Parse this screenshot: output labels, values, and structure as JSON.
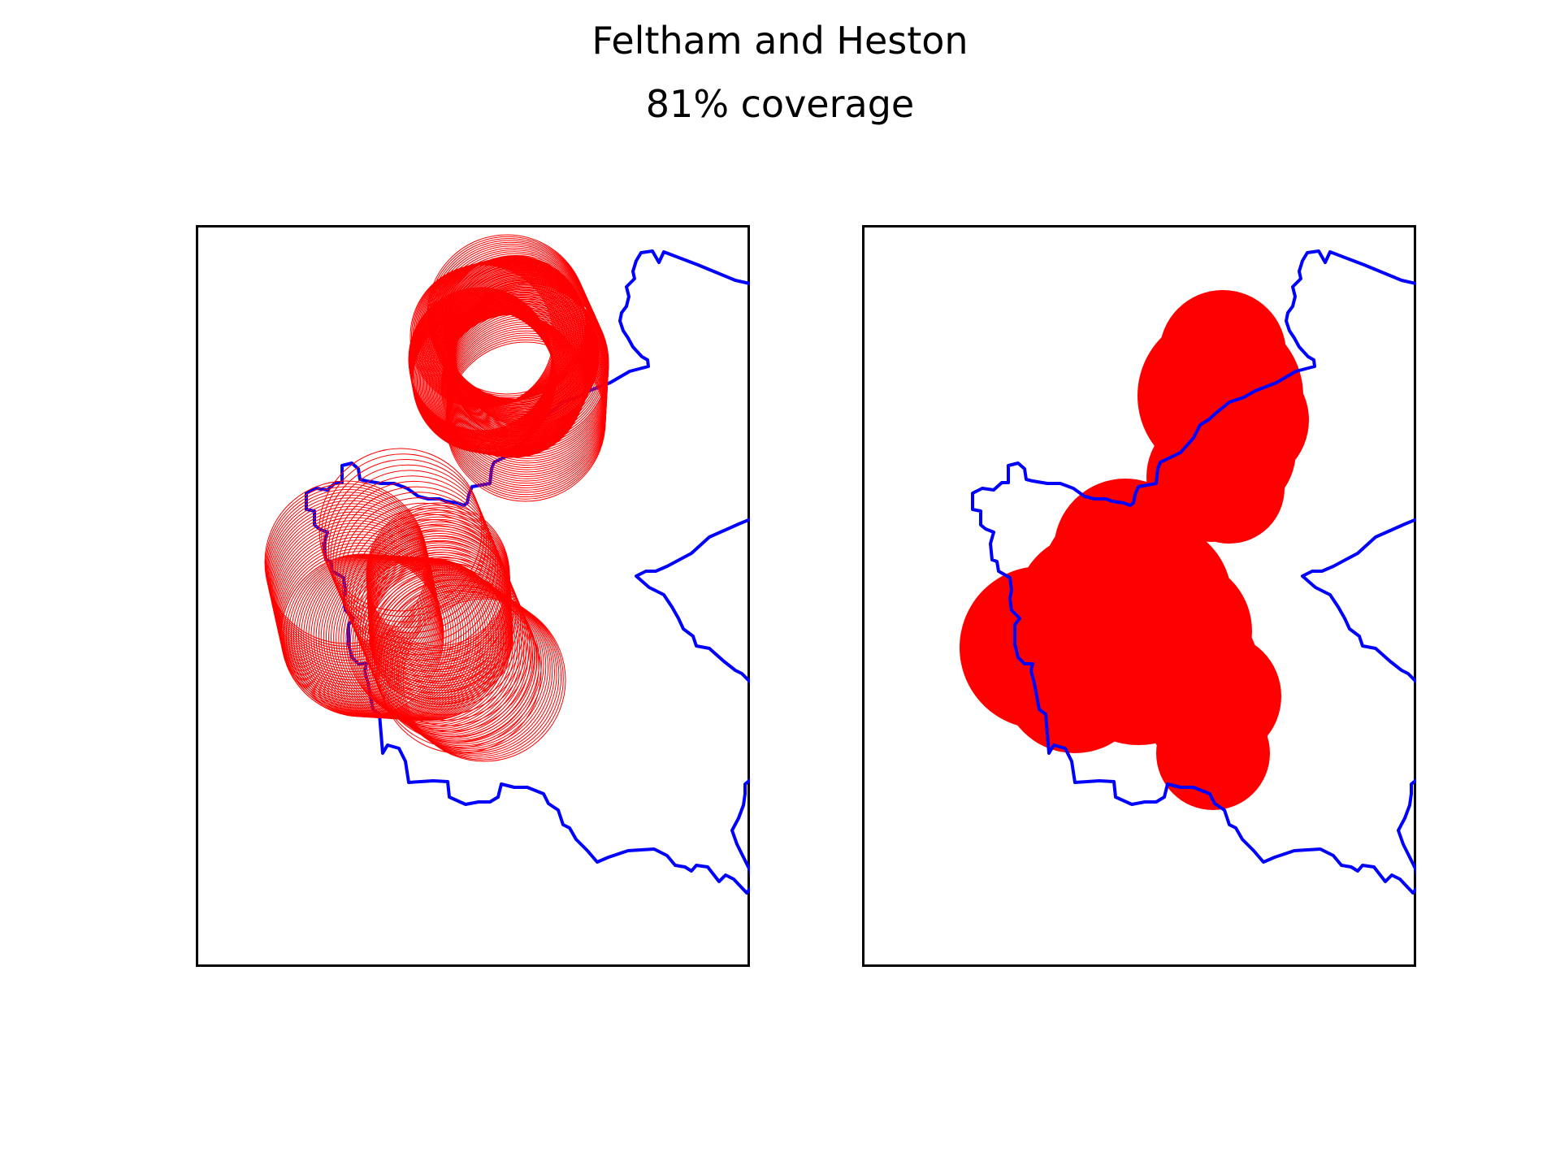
{
  "figure": {
    "title": "Feltham and Heston",
    "subtitle": "81% coverage"
  },
  "colors": {
    "boundary": "#0000ff",
    "coverage": "#ff0000",
    "frame": "#000000",
    "background": "#ffffff"
  },
  "panels": [
    {
      "id": "left",
      "coverage_style": "outline-rings"
    },
    {
      "id": "right",
      "coverage_style": "filled-discs"
    }
  ],
  "chart_data": {
    "type": "map",
    "region": "Feltham and Heston",
    "coverage_percent": 81,
    "series": [
      "constituency boundary",
      "coverage circles"
    ]
  }
}
